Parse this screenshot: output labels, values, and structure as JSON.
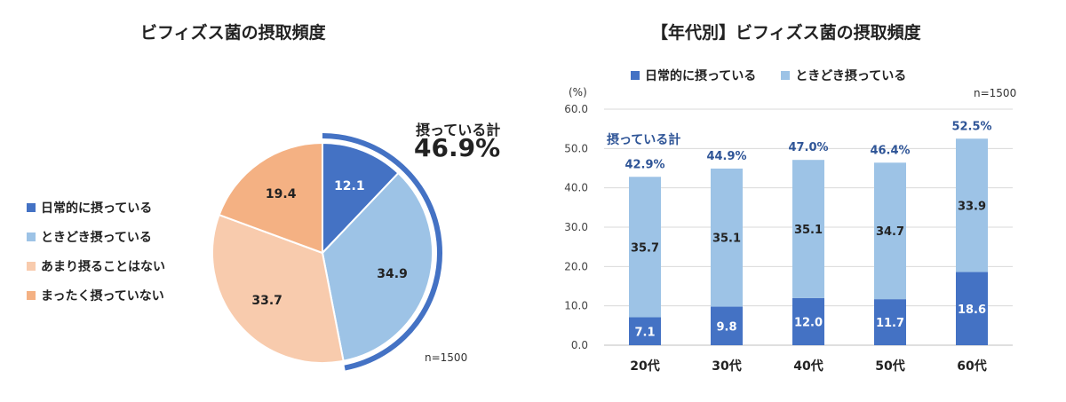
{
  "pie_chart": {
    "title": "ビフィズス菌の摂取頻度",
    "legend": [
      {
        "label": "日常的に摂っている",
        "color": "#4472c4"
      },
      {
        "label": "ときどき摂っている",
        "color": "#9dc3e6"
      },
      {
        "label": "あまり摂ることはない",
        "color": "#f8cbad"
      },
      {
        "label": "まったく摂っていない",
        "color": "#f4b183"
      }
    ],
    "callout_label": "摂っている計",
    "callout_value": "46.9%",
    "n_note": "n=1500"
  },
  "bar_chart": {
    "title": "【年代別】ビフィズス菌の摂取頻度",
    "legend": [
      {
        "label": "日常的に摂っている",
        "color": "#4472c4"
      },
      {
        "label": "ときどき摂っている",
        "color": "#9dc3e6"
      }
    ],
    "unit_label": "(%)",
    "n_note": "n=1500",
    "annotation": "摂っている計"
  },
  "chart_data": [
    {
      "type": "pie",
      "title": "ビフィズス菌の摂取頻度",
      "labels": [
        "日常的に摂っている",
        "ときどき摂っている",
        "あまり摂ることはない",
        "まったく摂っていない"
      ],
      "values": [
        12.1,
        34.9,
        33.7,
        19.4
      ],
      "value_labels": [
        "12.1",
        "34.9",
        "33.7",
        "19.4"
      ],
      "colors": [
        "#4472c4",
        "#9dc3e6",
        "#f8cbad",
        "#f4b183"
      ],
      "highlight_total": "46.9%"
    },
    {
      "type": "bar",
      "stacked": true,
      "title": "【年代別】ビフィズス菌の摂取頻度",
      "categories": [
        "20代",
        "30代",
        "40代",
        "50代",
        "60代"
      ],
      "series": [
        {
          "name": "日常的に摂っている",
          "values": [
            7.1,
            9.8,
            12.0,
            11.7,
            18.6
          ],
          "labels": [
            "7.1",
            "9.8",
            "12.0",
            "11.7",
            "18.6"
          ],
          "color": "#4472c4"
        },
        {
          "name": "ときどき摂っている",
          "values": [
            35.7,
            35.1,
            35.1,
            34.7,
            33.9
          ],
          "labels": [
            "35.7",
            "35.1",
            "35.1",
            "34.7",
            "33.9"
          ],
          "color": "#9dc3e6"
        }
      ],
      "totals": [
        "42.9%",
        "44.9%",
        "47.0%",
        "46.4%",
        "52.5%"
      ],
      "yticks": [
        "0.0",
        "10.0",
        "20.0",
        "30.0",
        "40.0",
        "50.0",
        "60.0"
      ],
      "ylim": [
        0,
        60
      ],
      "grid": true,
      "legend_position": "top"
    }
  ]
}
